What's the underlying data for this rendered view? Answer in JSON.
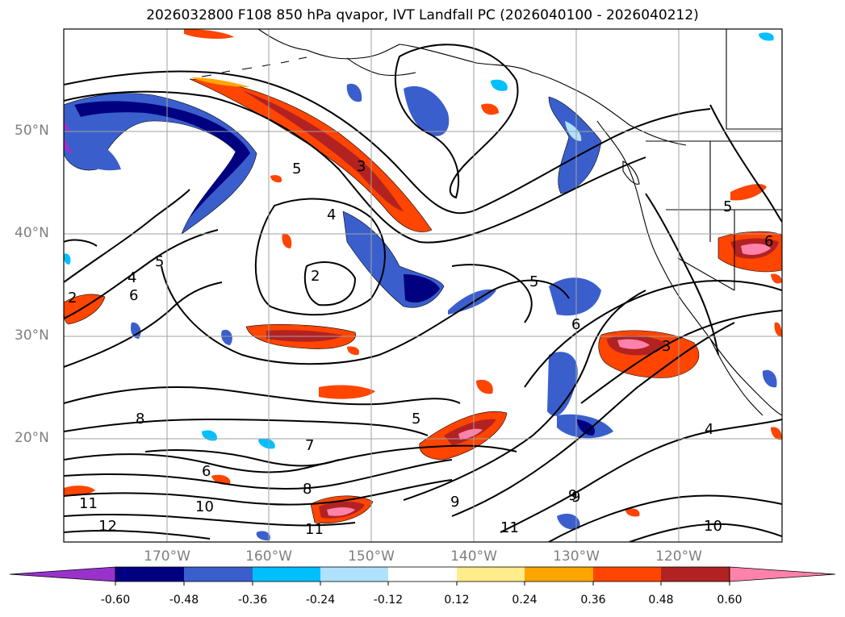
{
  "title": "2026032800 F108 850 hPa qvapor, IVT Landfall PC (2026040100 - 2026040212)",
  "lat_labels": [
    "50°N",
    "40°N",
    "30°N",
    "20°N"
  ],
  "lon_labels": [
    "170°W",
    "160°W",
    "150°W",
    "140°W",
    "130°W",
    "120°W"
  ],
  "contour_labels": [
    "5",
    "3",
    "4",
    "2",
    "5",
    "4",
    "6",
    "2",
    "5",
    "3",
    "6",
    "9",
    "5",
    "8",
    "7",
    "6",
    "8",
    "11",
    "10",
    "12",
    "11",
    "9",
    "9",
    "11",
    "10",
    "4",
    "5",
    "6"
  ],
  "colorbar": {
    "labels": [
      "-0.60",
      "-0.48",
      "-0.36",
      "-0.24",
      "-0.12",
      "0.12",
      "0.24",
      "0.36",
      "0.48",
      "0.60"
    ],
    "colors": [
      "#9932cc",
      "#000080",
      "#3a5fcd",
      "#00bfff",
      "#b0e2ff",
      "#ffffff",
      "#ffec8b",
      "#ffa500",
      "#ff4500",
      "#b22222",
      "#ff82ab"
    ]
  }
}
